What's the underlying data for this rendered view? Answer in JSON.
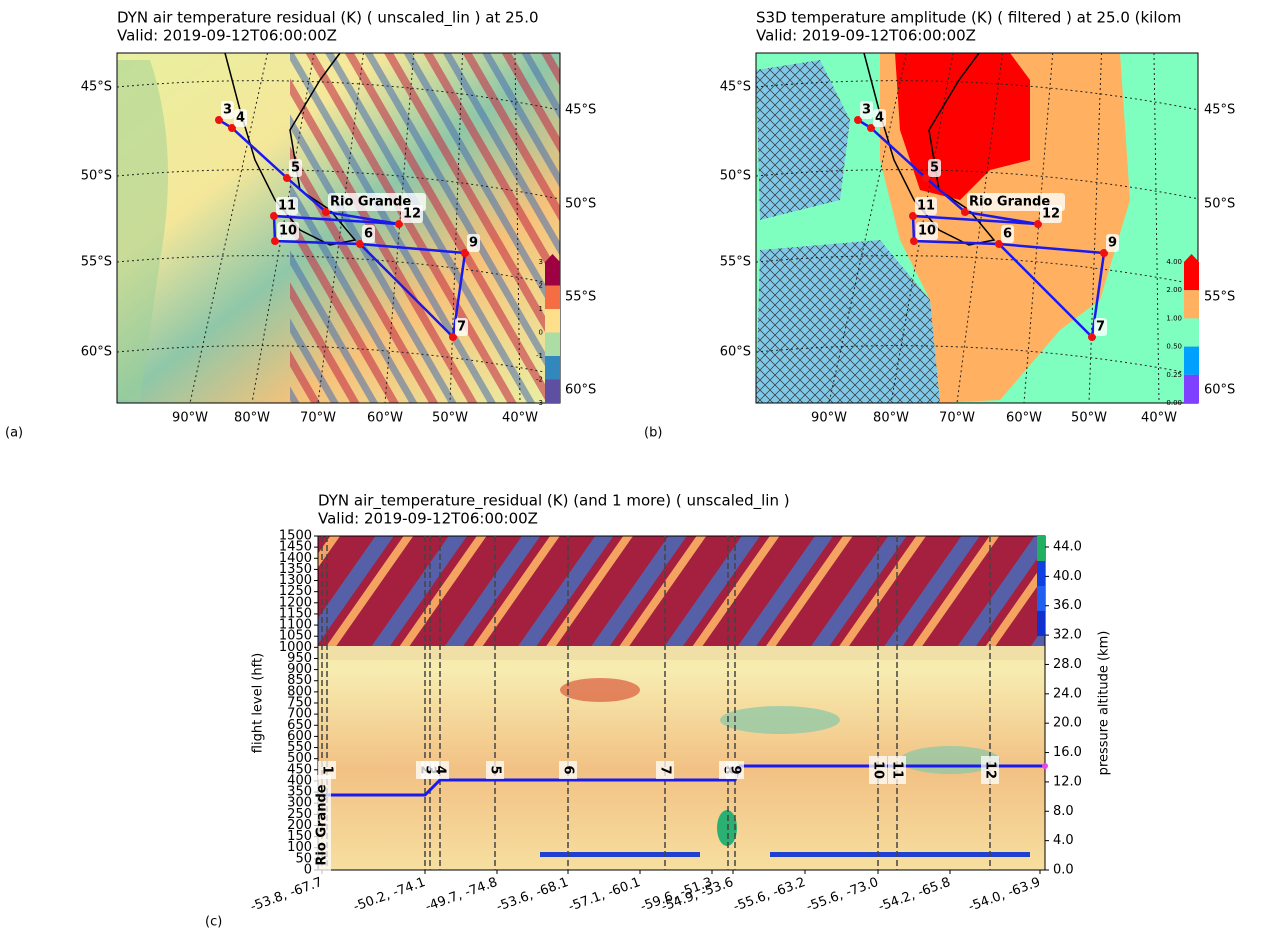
{
  "panels": {
    "a": {
      "label": "(a)",
      "title": "DYN air temperature residual (K) ( unscaled_lin ) at 25.0",
      "valid": "Valid: 2019-09-12T06:00:00Z",
      "lat_left": [
        "45°S",
        "50°S",
        "55°S",
        "60°S"
      ],
      "lat_right": [
        "45°S",
        "50°S",
        "55°S",
        "60°S"
      ],
      "lon": [
        "90°W",
        "80°W",
        "70°W",
        "60°W",
        "50°W",
        "40°W"
      ],
      "waypoints": [
        "3",
        "4",
        "5",
        "Rio Grande",
        "11",
        "12",
        "10",
        "6",
        "9",
        "7"
      ],
      "colorbar": [
        "3",
        "2",
        "1",
        "0",
        "-1",
        "-2",
        "-3"
      ]
    },
    "b": {
      "label": "(b)",
      "title": "S3D temperature amplitude (K) ( filtered ) at 25.0 (kilom",
      "valid": "Valid: 2019-09-12T06:00:00Z",
      "lat_left": [
        "45°S",
        "50°S",
        "55°S",
        "60°S"
      ],
      "lat_right": [
        "45°S",
        "50°S",
        "55°S",
        "60°S"
      ],
      "lon": [
        "90°W",
        "80°W",
        "70°W",
        "60°W",
        "50°W",
        "40°W"
      ],
      "waypoints": [
        "3",
        "4",
        "5",
        "Rio Grande",
        "11",
        "12",
        "10",
        "6",
        "9",
        "7"
      ],
      "colorbar": [
        "4.00",
        "2.00",
        "1.00",
        "0.50",
        "0.25",
        "0.00"
      ]
    },
    "c": {
      "label": "(c)",
      "title": "DYN air_temperature_residual (K) (and 1 more) ( unscaled_lin )",
      "valid": "Valid: 2019-09-12T06:00:00Z",
      "y_label": "flight level (hft)",
      "y2_label": "pressure altitude (km)",
      "yticks": [
        "0",
        "50",
        "100",
        "150",
        "200",
        "250",
        "300",
        "350",
        "400",
        "450",
        "500",
        "550",
        "600",
        "650",
        "700",
        "750",
        "800",
        "850",
        "900",
        "950",
        "1000",
        "1050",
        "1100",
        "1150",
        "1200",
        "1250",
        "1300",
        "1350",
        "1400",
        "1450",
        "1500"
      ],
      "y2ticks": [
        "0.0",
        "4.0",
        "8.0",
        "12.0",
        "16.0",
        "20.0",
        "24.0",
        "28.0",
        "32.0",
        "36.0",
        "40.0",
        "44.0"
      ],
      "xticks": [
        "-53.8, -67.7",
        "-50.2, -74.1",
        "-49.7, -74.8",
        "-53.6, -68.1",
        "-57.1, -60.1",
        "-59.6, -51.3",
        "-54.9, -53.6",
        "-55.6, -63.2",
        "-55.6, -73.0",
        "-54.2, -65.8",
        "-54.0, -63.9"
      ],
      "waypoints": [
        "Rio Grande",
        "1",
        "2",
        "3",
        "4",
        "5",
        "6",
        "7",
        "8",
        "9",
        "10",
        "11",
        "12"
      ]
    }
  }
}
